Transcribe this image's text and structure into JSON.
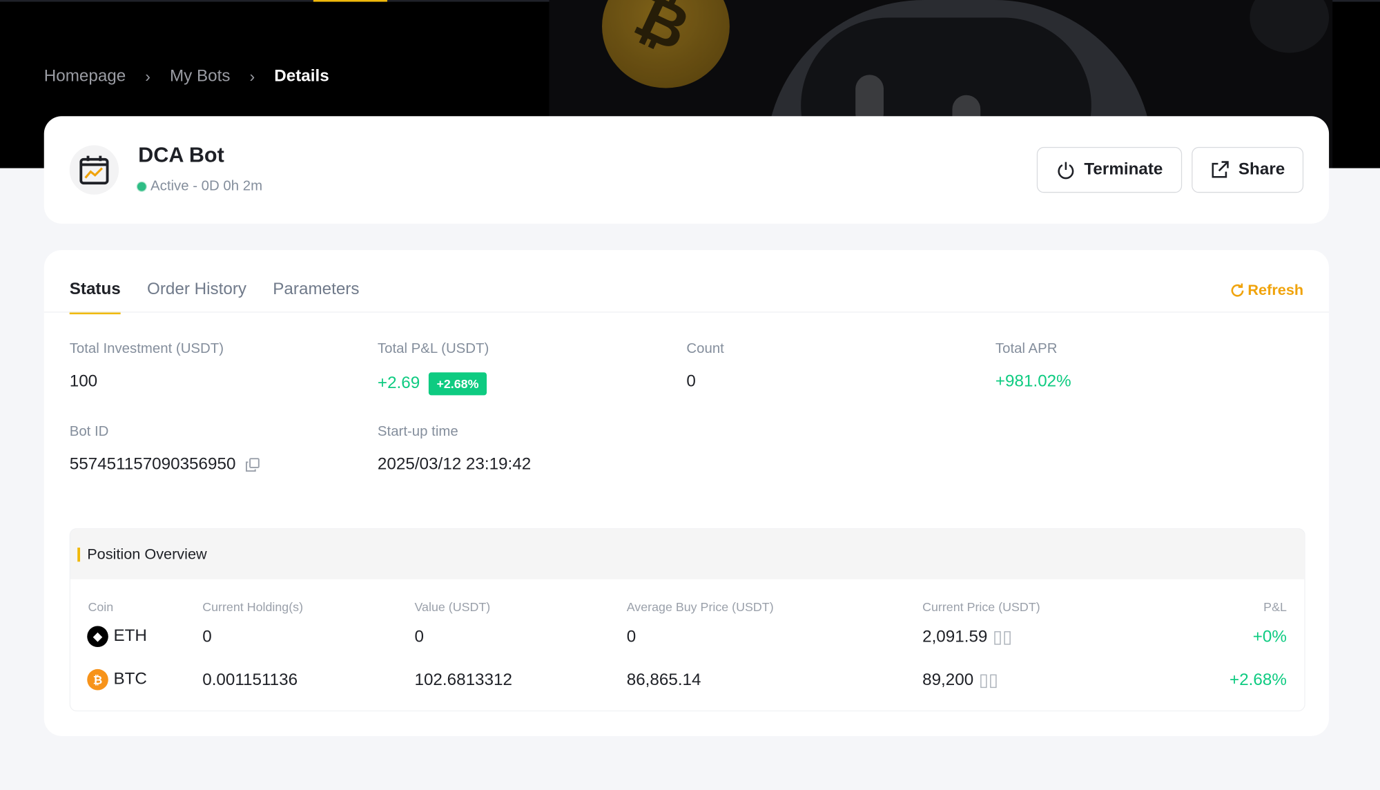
{
  "breadcrumb": [
    "Homepage",
    "My Bots",
    "Details"
  ],
  "bot": {
    "title": "DCA Bot",
    "status": "Active - 0D 0h 2m",
    "icon": "calendar-chart-icon"
  },
  "actions": {
    "terminate": "Terminate",
    "share": "Share"
  },
  "tabs": [
    "Status",
    "Order History",
    "Parameters"
  ],
  "refresh": "Refresh",
  "stats": {
    "total_investment": {
      "label": "Total Investment (USDT)",
      "value": "100"
    },
    "total_pnl": {
      "label": "Total P&L (USDT)",
      "value": "+2.69",
      "badge": "+2.68%"
    },
    "count": {
      "label": "Count",
      "value": "0"
    },
    "total_apr": {
      "label": "Total APR",
      "value": "+981.02%"
    },
    "bot_id": {
      "label": "Bot ID",
      "value": "557451157090356950"
    },
    "startup": {
      "label": "Start-up time",
      "value": "2025/03/12 23:19:42"
    }
  },
  "position": {
    "title": "Position Overview",
    "headers": [
      "Coin",
      "Current Holding(s)",
      "Value (USDT)",
      "Average Buy Price (USDT)",
      "Current Price (USDT)",
      "P&L"
    ],
    "rows": [
      [
        "ETH",
        "0",
        "0",
        "0",
        "2,091.59",
        "+0%"
      ],
      [
        "BTC",
        "0.001151136",
        "102.6813312",
        "86,865.14",
        "89,200",
        "+2.68%"
      ]
    ]
  },
  "colors": {
    "accent": "#f0b90b",
    "positive": "#0ecb81",
    "eth": "#000000",
    "btc": "#f7931a"
  }
}
